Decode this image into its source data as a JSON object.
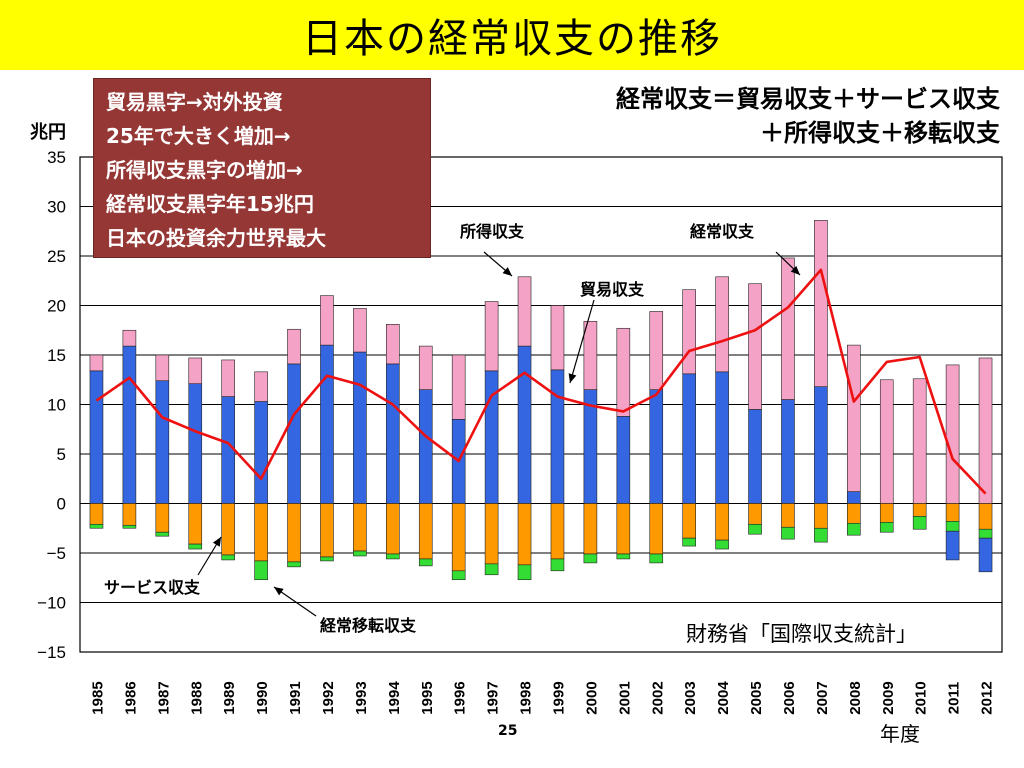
{
  "page": {
    "title": "日本の経常収支の推移",
    "note_lines": [
      "貿易黒字→対外投資",
      "25年で大きく増加→",
      "所得収支黒字の増加→",
      "経常収支黒字年15兆円",
      "日本の投資余力世界最大"
    ],
    "formula_lines": [
      "経常収支＝貿易収支＋サービス収支",
      "＋所得収支＋移転収支"
    ],
    "unit": "兆円",
    "source": "財務省「国際収支統計」",
    "page_number": "25",
    "x_unit": "年度"
  },
  "chart_data": {
    "type": "bar",
    "stacked": true,
    "title": "",
    "ylim": [
      -15,
      35
    ],
    "y_ticks": [
      35,
      30,
      25,
      20,
      15,
      10,
      5,
      0,
      -5,
      -10,
      -15
    ],
    "y_tick_labels": [
      "35",
      "30",
      "25",
      "20",
      "15",
      "10",
      "5",
      "0",
      "−5",
      "−10",
      "−15"
    ],
    "grid": true,
    "categories": [
      "1985",
      "1986",
      "1987",
      "1988",
      "1989",
      "1990",
      "1991",
      "1992",
      "1993",
      "1994",
      "1995",
      "1996",
      "1997",
      "1998",
      "1999",
      "2000",
      "2001",
      "2002",
      "2003",
      "2004",
      "2005",
      "2006",
      "2007",
      "2008",
      "2009",
      "2010",
      "2011",
      "2012"
    ],
    "annotations": {
      "income": "所得収支",
      "current": "経常収支",
      "trade": "貿易収支",
      "services": "サービス収支",
      "transfers": "経常移転収支"
    },
    "series": [
      {
        "key": "trade",
        "chart_type": "bar",
        "color": "#3366e0",
        "values": [
          13.4,
          15.9,
          12.4,
          12.1,
          10.8,
          10.3,
          14.1,
          16.0,
          15.3,
          14.1,
          11.5,
          8.5,
          13.4,
          15.9,
          13.5,
          11.5,
          8.8,
          11.5,
          13.1,
          13.3,
          9.5,
          10.5,
          11.8,
          1.2,
          0,
          0,
          -2.9,
          -3.4
        ]
      },
      {
        "key": "income",
        "chart_type": "bar",
        "color": "#f4a2c5",
        "values": [
          1.6,
          1.6,
          2.6,
          2.6,
          3.7,
          3.0,
          3.5,
          5.0,
          4.4,
          4.0,
          4.4,
          6.5,
          7.0,
          7.0,
          6.5,
          6.9,
          8.9,
          7.9,
          8.5,
          9.6,
          12.7,
          14.3,
          16.8,
          14.8,
          12.5,
          12.6,
          14.0,
          14.7
        ]
      },
      {
        "key": "services",
        "chart_type": "bar",
        "color": "#ff9900",
        "values": [
          -2.1,
          -2.2,
          -2.9,
          -4.1,
          -5.2,
          -5.8,
          -5.9,
          -5.4,
          -4.8,
          -5.1,
          -5.6,
          -6.8,
          -6.1,
          -6.2,
          -5.6,
          -5.1,
          -5.1,
          -5.1,
          -3.5,
          -3.7,
          -2.1,
          -2.4,
          -2.5,
          -2.0,
          -1.9,
          -1.3,
          -1.8,
          -2.6
        ]
      },
      {
        "key": "transfers",
        "chart_type": "bar",
        "color": "#33dd33",
        "values": [
          -0.4,
          -0.3,
          -0.4,
          -0.5,
          -0.5,
          -1.9,
          -0.5,
          -0.4,
          -0.5,
          -0.5,
          -0.7,
          -0.9,
          -1.1,
          -1.5,
          -1.2,
          -0.9,
          -0.5,
          -0.9,
          -0.8,
          -0.9,
          -1.0,
          -1.2,
          -1.4,
          -1.2,
          -1.0,
          -1.3,
          -1.0,
          -0.9
        ]
      },
      {
        "key": "current",
        "chart_type": "line",
        "color": "#ee1111",
        "values": [
          10.4,
          12.7,
          8.7,
          7.3,
          6.1,
          2.5,
          9.0,
          12.9,
          12.0,
          10.0,
          6.8,
          4.3,
          10.9,
          13.2,
          10.8,
          9.9,
          9.3,
          11.0,
          15.4,
          16.4,
          17.5,
          19.8,
          23.6,
          10.3,
          14.3,
          14.8,
          4.5,
          1.0
        ]
      }
    ]
  }
}
